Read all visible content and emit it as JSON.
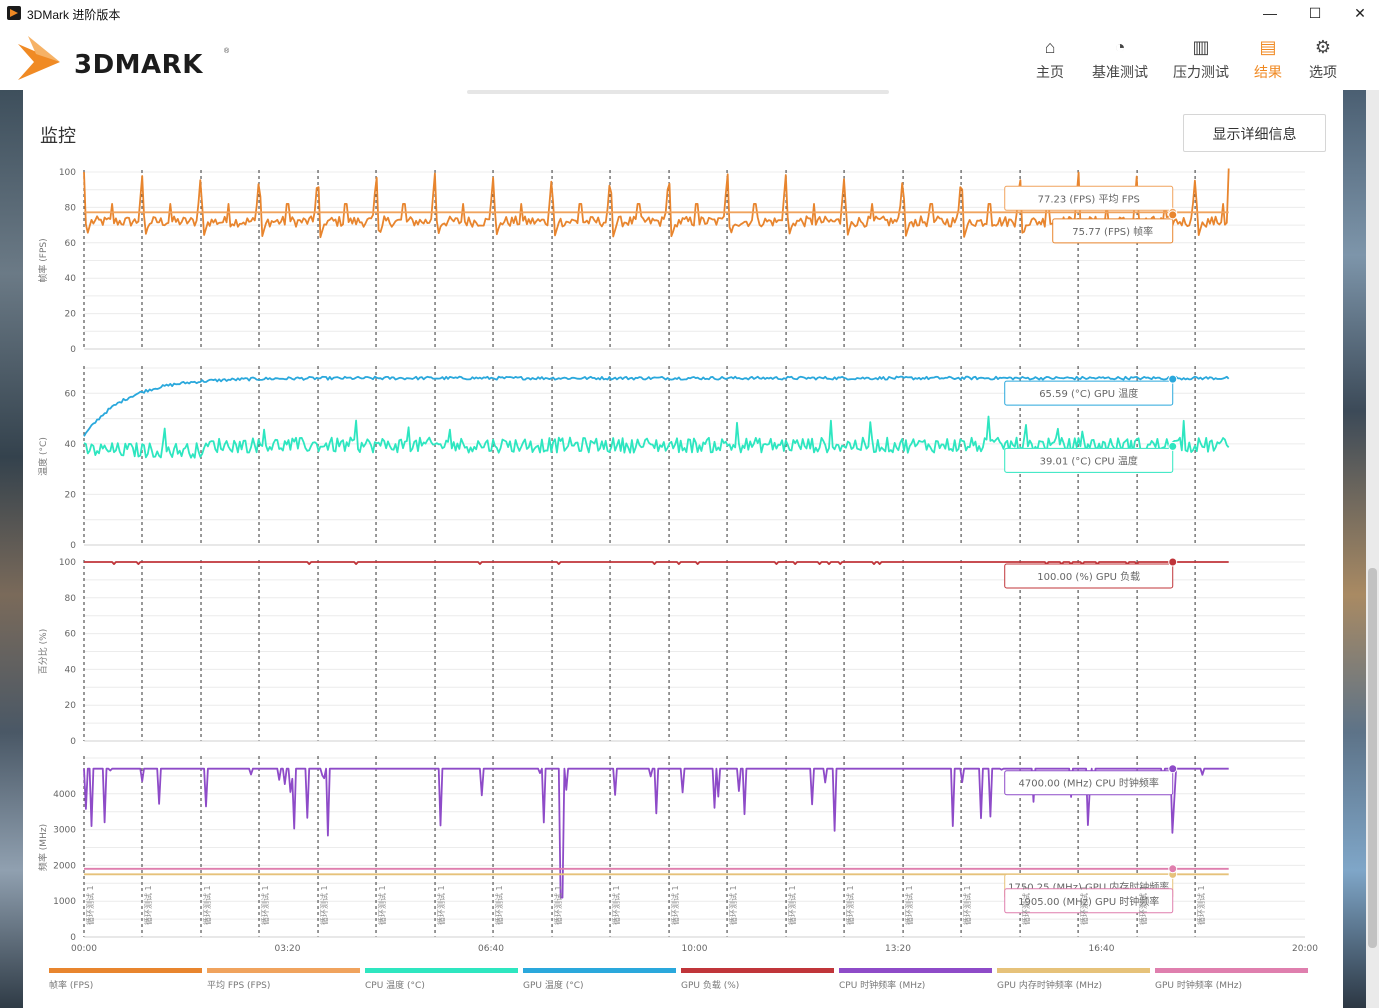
{
  "window": {
    "title": "3DMark 进阶版本",
    "minimize_glyph": "—",
    "maximize_glyph": "☐",
    "close_glyph": "✕"
  },
  "logo": {
    "text": "3DMARK",
    "reg": "®"
  },
  "nav": [
    {
      "label": "主页",
      "icon": "home-icon",
      "glyph": "⌂",
      "active": false
    },
    {
      "label": "基准测试",
      "icon": "gauge-icon",
      "glyph": "◔",
      "active": false
    },
    {
      "label": "压力测试",
      "icon": "stress-bars-icon",
      "glyph": "▥",
      "active": false
    },
    {
      "label": "结果",
      "icon": "results-bars-icon",
      "glyph": "▤",
      "active": true
    },
    {
      "label": "选项",
      "icon": "gear-icon",
      "glyph": "⚙",
      "active": false
    }
  ],
  "monitor": {
    "title": "监控",
    "detail_button": "显示详细信息"
  },
  "colors": {
    "fps": "#e8852e",
    "avg_fps": "#f0a35e",
    "cpu_temp": "#2ee6c0",
    "gpu_temp": "#2aa8dc",
    "gpu_load": "#c0353a",
    "cpu_clock": "#8e4bc8",
    "gpu_mem_clock": "#e6c27a",
    "gpu_clock": "#df7fae"
  },
  "chart_data": {
    "type": "line",
    "x_axis": {
      "unit": "mm:ss",
      "range_s": [
        0,
        1200
      ],
      "tick_labels": [
        "00:00",
        "03:20",
        "06:40",
        "10:00",
        "13:20",
        "16:40",
        "20:00"
      ]
    },
    "loop_markers": {
      "label": "循环测试 1",
      "times_s": [
        0,
        57,
        115,
        172,
        230,
        287,
        345,
        402,
        460,
        517,
        575,
        632,
        690,
        747,
        805,
        862,
        920,
        977,
        1035,
        1092
      ]
    },
    "cursor_time_s": 1070,
    "panels": [
      {
        "ylabel": "帧率 (FPS)",
        "ylim": [
          0,
          100
        ],
        "yticks": [
          0,
          20,
          40,
          60,
          80,
          100
        ],
        "series": [
          {
            "key": "fps",
            "legend": "帧率 (FPS)",
            "pattern": "periodic_spike",
            "base": 72,
            "spike_peak": 100,
            "spike_low": 63,
            "period_s": 57.5,
            "end_value": 102
          },
          {
            "key": "avg_fps",
            "legend": "平均 FPS (FPS)",
            "pattern": "flat",
            "value": 77.23
          }
        ],
        "callouts": [
          {
            "text": "77.23 (FPS) 平均 FPS",
            "value": 77.23,
            "series": "avg_fps"
          },
          {
            "text": "75.77 (FPS) 帧率",
            "value": 75.77,
            "series": "fps"
          }
        ]
      },
      {
        "ylabel": "温度 (°C)",
        "ylim": [
          0,
          70
        ],
        "yticks": [
          0,
          20,
          40,
          60
        ],
        "series": [
          {
            "key": "gpu_temp",
            "legend": "GPU 温度 (°C)",
            "pattern": "warmup",
            "start": 43,
            "plateau": 66
          },
          {
            "key": "cpu_temp",
            "legend": "CPU 温度 (°C)",
            "pattern": "noisy",
            "start": 38,
            "mean": 39.5,
            "noise": 3,
            "peak": 51
          }
        ],
        "callouts": [
          {
            "text": "65.59 (°C) GPU 温度",
            "value": 65.59,
            "series": "gpu_temp"
          },
          {
            "text": "39.01 (°C) CPU 温度",
            "value": 39.01,
            "series": "cpu_temp"
          }
        ]
      },
      {
        "ylabel": "百分比 (%)",
        "ylim": [
          0,
          100
        ],
        "yticks": [
          0,
          20,
          40,
          60,
          80,
          100
        ],
        "series": [
          {
            "key": "gpu_load",
            "legend": "GPU 负载 (%)",
            "pattern": "flat",
            "value": 100
          }
        ],
        "callouts": [
          {
            "text": "100.00 (%) GPU 负载",
            "value": 100,
            "series": "gpu_load"
          }
        ]
      },
      {
        "ylabel": "频率 (MHz)",
        "ylim": [
          0,
          5000
        ],
        "yticks": [
          0,
          1000,
          2000,
          3000,
          4000
        ],
        "series": [
          {
            "key": "cpu_clock",
            "legend": "CPU 时钟频率 (MHz)",
            "pattern": "dips",
            "base": 4700,
            "dip_min": 2800,
            "deepest_dip": 1100
          },
          {
            "key": "gpu_clock",
            "legend": "GPU 时钟频率 (MHz)",
            "pattern": "flat",
            "value": 1905
          },
          {
            "key": "gpu_mem_clock",
            "legend": "GPU 内存时钟频率 (MHz)",
            "pattern": "flat",
            "value": 1750.25
          }
        ],
        "callouts": [
          {
            "text": "4700.00 (MHz) CPU 时钟频率",
            "value": 4700,
            "series": "cpu_clock"
          },
          {
            "text": "1750.25 (MHz) GPU 内存时钟频率",
            "value": 1750.25,
            "series": "gpu_mem_clock"
          },
          {
            "text": "1905.00 (MHz) GPU 时钟频率",
            "value": 1905,
            "series": "gpu_clock"
          }
        ]
      }
    ],
    "legend": [
      {
        "key": "fps",
        "label": "帧率 (FPS)"
      },
      {
        "key": "avg_fps",
        "label": "平均 FPS (FPS)"
      },
      {
        "key": "cpu_temp",
        "label": "CPU 温度 (°C)"
      },
      {
        "key": "gpu_temp",
        "label": "GPU 温度 (°C)"
      },
      {
        "key": "gpu_load",
        "label": "GPU 负载 (%)"
      },
      {
        "key": "cpu_clock",
        "label": "CPU 时钟频率 (MHz)"
      },
      {
        "key": "gpu_mem_clock",
        "label": "GPU 内存时钟频率 (MHz)"
      },
      {
        "key": "gpu_clock",
        "label": "GPU 时钟频率 (MHz)"
      }
    ]
  }
}
